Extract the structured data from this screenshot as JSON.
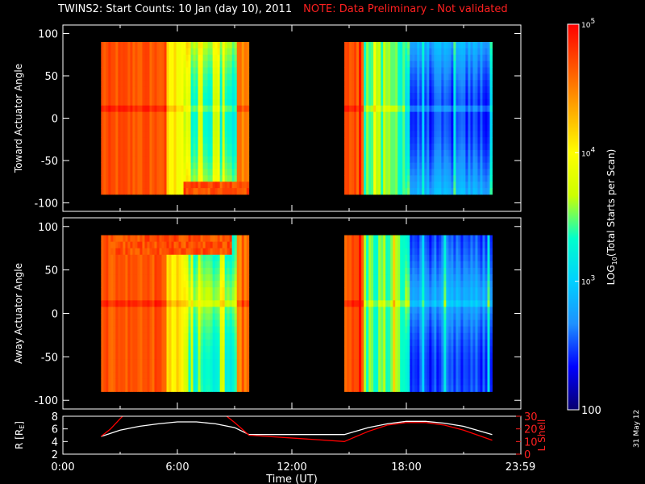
{
  "header": {
    "title": "TWINS2: Start Counts: 10 Jan (day  10), 2011",
    "note": "NOTE: Data Preliminary - Not validated",
    "note_color": "#ff2020"
  },
  "stamp": "31 May 12",
  "chart_data": [
    {
      "type": "heatmap",
      "ylabel": "Toward Actuator Angle",
      "ylim": [
        -110,
        110
      ],
      "yticks": [
        -100,
        -50,
        0,
        50,
        100
      ],
      "x_range": [
        "0:00",
        "23:59"
      ],
      "blocks": [
        {
          "start": "2:00",
          "end": "9:45",
          "level": "high"
        },
        {
          "start": "14:45",
          "end": "22:30",
          "level": "low"
        }
      ],
      "angle_range": [
        -90,
        90
      ]
    },
    {
      "type": "heatmap",
      "ylabel": "Away Actuator Angle",
      "ylim": [
        -110,
        110
      ],
      "yticks": [
        -100,
        -50,
        0,
        50,
        100
      ],
      "x_range": [
        "0:00",
        "23:59"
      ],
      "blocks": [
        {
          "start": "2:00",
          "end": "9:45",
          "level": "high"
        },
        {
          "start": "14:45",
          "end": "22:30",
          "level": "low"
        }
      ],
      "angle_range": [
        -90,
        90
      ]
    },
    {
      "type": "line",
      "xlabel": "Time (UT)",
      "xticks": [
        "0:00",
        "6:00",
        "12:00",
        "18:00",
        "23:59"
      ],
      "ylabel_left": "R [R",
      "ylabel_left_sub": "E",
      "ylabel_left_end": "]",
      "ylim_left": [
        2,
        8
      ],
      "yticks_left": [
        2,
        4,
        6,
        8
      ],
      "ylabel_right": "L Shell",
      "ylim_right": [
        0,
        30
      ],
      "yticks_right": [
        0,
        10,
        20,
        30
      ],
      "series": [
        {
          "axis": "left",
          "color": "#ffffff",
          "x": [
            2.0,
            3.0,
            4.0,
            5.0,
            6.0,
            7.0,
            8.0,
            9.0,
            9.75,
            12.0,
            14.75,
            16.0,
            17.0,
            18.0,
            19.0,
            20.0,
            21.0,
            22.5
          ],
          "values": [
            4.8,
            5.8,
            6.4,
            6.8,
            7.1,
            7.1,
            6.8,
            6.2,
            5.1,
            5.1,
            5.1,
            6.2,
            6.8,
            7.2,
            7.2,
            6.9,
            6.4,
            5.1
          ]
        },
        {
          "axis": "right",
          "color": "#ff0000",
          "x": [
            2.0,
            2.5,
            3.0,
            3.2,
            8.5,
            9.0,
            9.75,
            14.75,
            16.0,
            17.0,
            18.0,
            19.0,
            20.0,
            21.0,
            22.5
          ],
          "values": [
            14,
            20,
            28,
            31,
            31,
            25,
            15,
            10,
            18,
            23,
            25,
            25,
            23,
            19,
            11
          ]
        }
      ]
    }
  ],
  "colorbar": {
    "title": "LOG",
    "title_sub": "10",
    "title_end": "(Total Starts per Scan)",
    "ticks": [
      {
        "base": "10",
        "exp": "5",
        "value": 5
      },
      {
        "base": "10",
        "exp": "4",
        "value": 4
      },
      {
        "base": "10",
        "exp": "3",
        "value": 3
      },
      {
        "base": "100",
        "exp": "",
        "value": 2
      }
    ],
    "range": [
      2,
      5
    ],
    "colors": [
      "#08006e",
      "#0000ff",
      "#1e90ff",
      "#00d0ff",
      "#00ffcc",
      "#ccff00",
      "#ffff00",
      "#ffaa00",
      "#ff5500",
      "#ff0000"
    ]
  }
}
